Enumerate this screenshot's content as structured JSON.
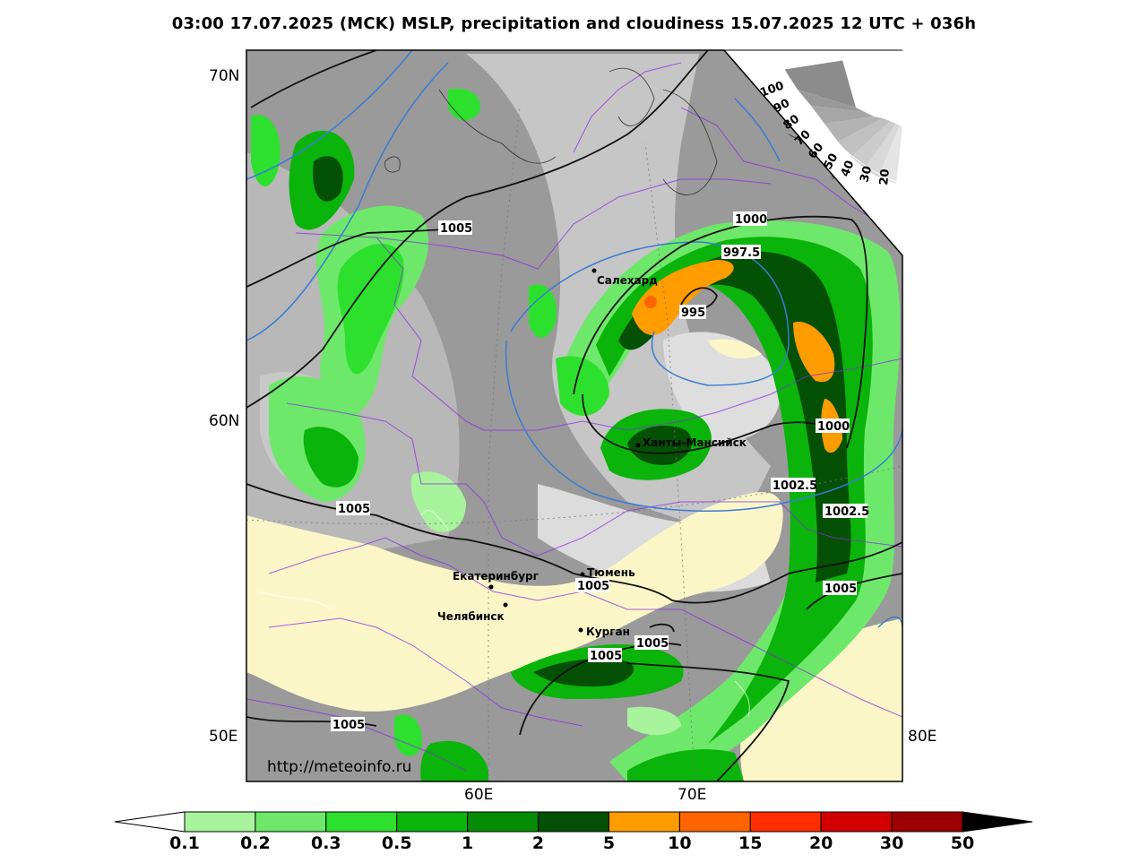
{
  "title": "03:00 17.07.2025 (MCK) MSLP, precipitation and cloudiness 15.07.2025 12 UTC + 036h",
  "watermark": "http://meteoinfo.ru",
  "lat_labels": [
    "70N",
    "60N",
    "50E"
  ],
  "lon_labels": [
    "60E",
    "70E",
    "80E"
  ],
  "cities": [
    {
      "name": "Салехард"
    },
    {
      "name": "Ханты-Мансийск"
    },
    {
      "name": "Тюмень"
    },
    {
      "name": "Екатеринбург"
    },
    {
      "name": "Челябинск"
    },
    {
      "name": "Курган"
    }
  ],
  "isobar_labels": [
    "1005",
    "1000",
    "997.5",
    "995",
    "1000",
    "1002.5",
    "1002.5",
    "1005",
    "1005",
    "1005",
    "1005",
    "1005",
    "1005"
  ],
  "cloud_scale": [
    "100",
    "90",
    "80",
    "70",
    "60",
    "50",
    "40",
    "30",
    "20"
  ],
  "precip_legend": {
    "ticks": [
      "0.1",
      "0.2",
      "0.3",
      "0.5",
      "1",
      "2",
      "5",
      "10",
      "15",
      "20",
      "30",
      "50"
    ],
    "colors": [
      "#a8f49c",
      "#6ee86a",
      "#2ee02e",
      "#0ab40a",
      "#058c05",
      "#045004",
      "#ff9c00",
      "#ff6400",
      "#ff2d00",
      "#d20000",
      "#9c0000"
    ]
  }
}
